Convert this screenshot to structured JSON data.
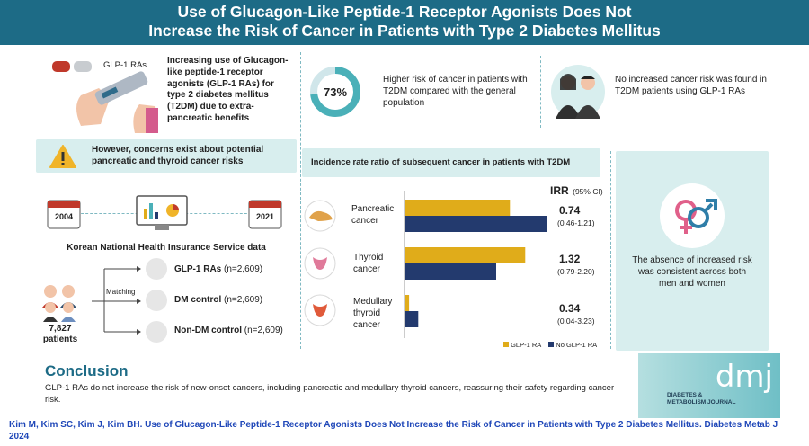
{
  "header": {
    "line1": "Use of Glucagon-Like Peptide-1 Receptor Agonists Does Not",
    "line2": "Increase the Risk of Cancer in Patients with Type 2 Diabetes Mellitus"
  },
  "intro": {
    "drug_label": "GLP-1 RAs",
    "text": "Increasing use of Glucagon-like peptide-1 receptor agonists (GLP-1 RAs) for type 2 diabetes mellitus (T2DM) due to extra-pancreatic benefits"
  },
  "warning": {
    "text": "However, concerns exist about potential pancreatic and thyroid cancer risks"
  },
  "timeline": {
    "start_year": "2004",
    "end_year": "2021",
    "source": "Korean National Health Insurance Service data"
  },
  "cohort": {
    "total_number": "7,827",
    "total_label": "patients",
    "matching_label": "Matching",
    "groups": [
      {
        "name": "GLP-1 RAs",
        "n": "(n=2,609)"
      },
      {
        "name": "DM control",
        "n": "(n=2,609)"
      },
      {
        "name": "Non-DM control",
        "n": "(n=2,609)"
      }
    ]
  },
  "stat": {
    "percent": "73%",
    "percent_value": 73,
    "text": "Higher risk of cancer in patients with T2DM compared with the general population"
  },
  "finding": {
    "text": "No increased cancer risk was found in T2DM patients using GLP-1 RAs"
  },
  "chart_title": "Incidence rate ratio of subsequent cancer in patients with T2DM",
  "irr_header": {
    "label": "IRR",
    "ci": "(95% CI)"
  },
  "chart_data": {
    "type": "bar",
    "orientation": "horizontal",
    "categories": [
      "Pancreatic cancer",
      "Thyroid cancer",
      "Medullary thyroid cancer"
    ],
    "series": [
      {
        "name": "GLP-1 RA",
        "color": "#e0ac1a",
        "values": [
          0.69,
          0.79,
          0.03
        ]
      },
      {
        "name": "No GLP-1 RA",
        "color": "#233a6e",
        "values": [
          0.93,
          0.6,
          0.09
        ]
      }
    ],
    "irr": [
      "0.74",
      "1.32",
      "0.34"
    ],
    "ci": [
      "(0.46-1.21)",
      "(0.79-2.20)",
      "(0.04-3.23)"
    ],
    "legend_position": "bottom",
    "grid": false
  },
  "category_labels": [
    {
      "line1": "Pancreatic",
      "line2": "cancer",
      "line3": ""
    },
    {
      "line1": "Thyroid",
      "line2": "cancer",
      "line3": ""
    },
    {
      "line1": "Medullary",
      "line2": "thyroid",
      "line3": "cancer"
    }
  ],
  "sex_panel": {
    "text": "The absence of increased risk was consistent across both men and women"
  },
  "conclusion": {
    "title": "Conclusion",
    "text": "GLP-1 RAs do not increase the risk of new-onset cancers, including pancreatic and medullary thyroid cancers, reassuring their safety regarding cancer risk."
  },
  "journal": {
    "logo": "dmj",
    "name_line1": "DIABETES &",
    "name_line2": "METABOLISM JOURNAL"
  },
  "citation": "Kim M, Kim SC, Kim J, Kim BH. Use of Glucagon-Like Peptide-1 Receptor Agonists Does Not Increase the Risk of Cancer in Patients with Type 2 Diabetes Mellitus. Diabetes Metab J 2024",
  "colors": {
    "header": "#1d6b86",
    "panel": "#d8eeee",
    "glp1": "#e0ac1a",
    "no_glp1": "#233a6e",
    "ring": "#4ab0b8"
  }
}
